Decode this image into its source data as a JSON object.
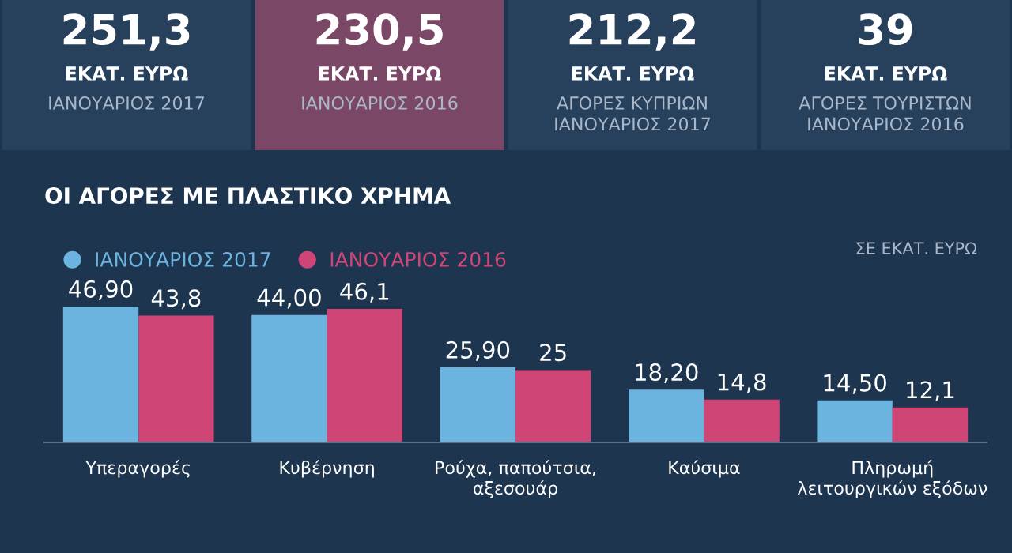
{
  "chart_data": [
    {
      "type": "other",
      "annotations": [
        "251,3\nΕΚΑΤ. ΕΥΡΩ\nΙΑΝΟΥΑΡΙΟΣ 2017",
        "230,5\nΕΚΑΤ. ΕΥΡΩ\nΙΑΝΟΥΑΡΙΟΣ 2016",
        "212,2\nΕΚΑΤ. ΕΥΡΩ\nΑΓΟΡΕΣ ΚΥΠΡΙΩΝ\nΙΑΝΟΥΑΡΙΟΣ 2017",
        "39\nΕΚΑΤ. ΕΥΡΩ\nΑΓΟΡΕΣ ΤΟΥΡΙΣΤΩΝ\nΙΑΝΟΥΑΡΙΟΣ 2016"
      ]
    },
    {
      "type": "bar",
      "title": "ΟΙ ΑΓΟΡΕΣ ΜΕ ΠΛΑΣΤΙΚΟ ΧΡΗΜΑ",
      "categories": [
        "Υπεραγορές",
        "Κυβέρνηση",
        "Ρούχα, παπούτσια,\nαξεσουάρ",
        "Καύσιμα",
        "Πληρωμή\nλειτουργικών εξόδων"
      ],
      "series": [
        {
          "name": "ΙΑΝΟΥΑΡΙΟΣ 2017",
          "color": "#6cb4e0",
          "values": [
            46.9,
            44.0,
            25.9,
            18.2,
            14.5
          ],
          "value_labels": [
            "46,90",
            "44,00",
            "25,90",
            "18,20",
            "14,50"
          ]
        },
        {
          "name": "ΙΑΝΟΥΑΡΙΟΣ 2016",
          "color": "#cf4676",
          "values": [
            43.8,
            46.1,
            25,
            14.8,
            12.1
          ],
          "value_labels": [
            "43,8",
            "46,1",
            "25",
            "14,8",
            "12,1"
          ]
        }
      ],
      "legend": "top left",
      "annotations": [
        "ΣΕ ΕΚΑΤ. ΕΥΡΩ"
      ]
    }
  ]
}
